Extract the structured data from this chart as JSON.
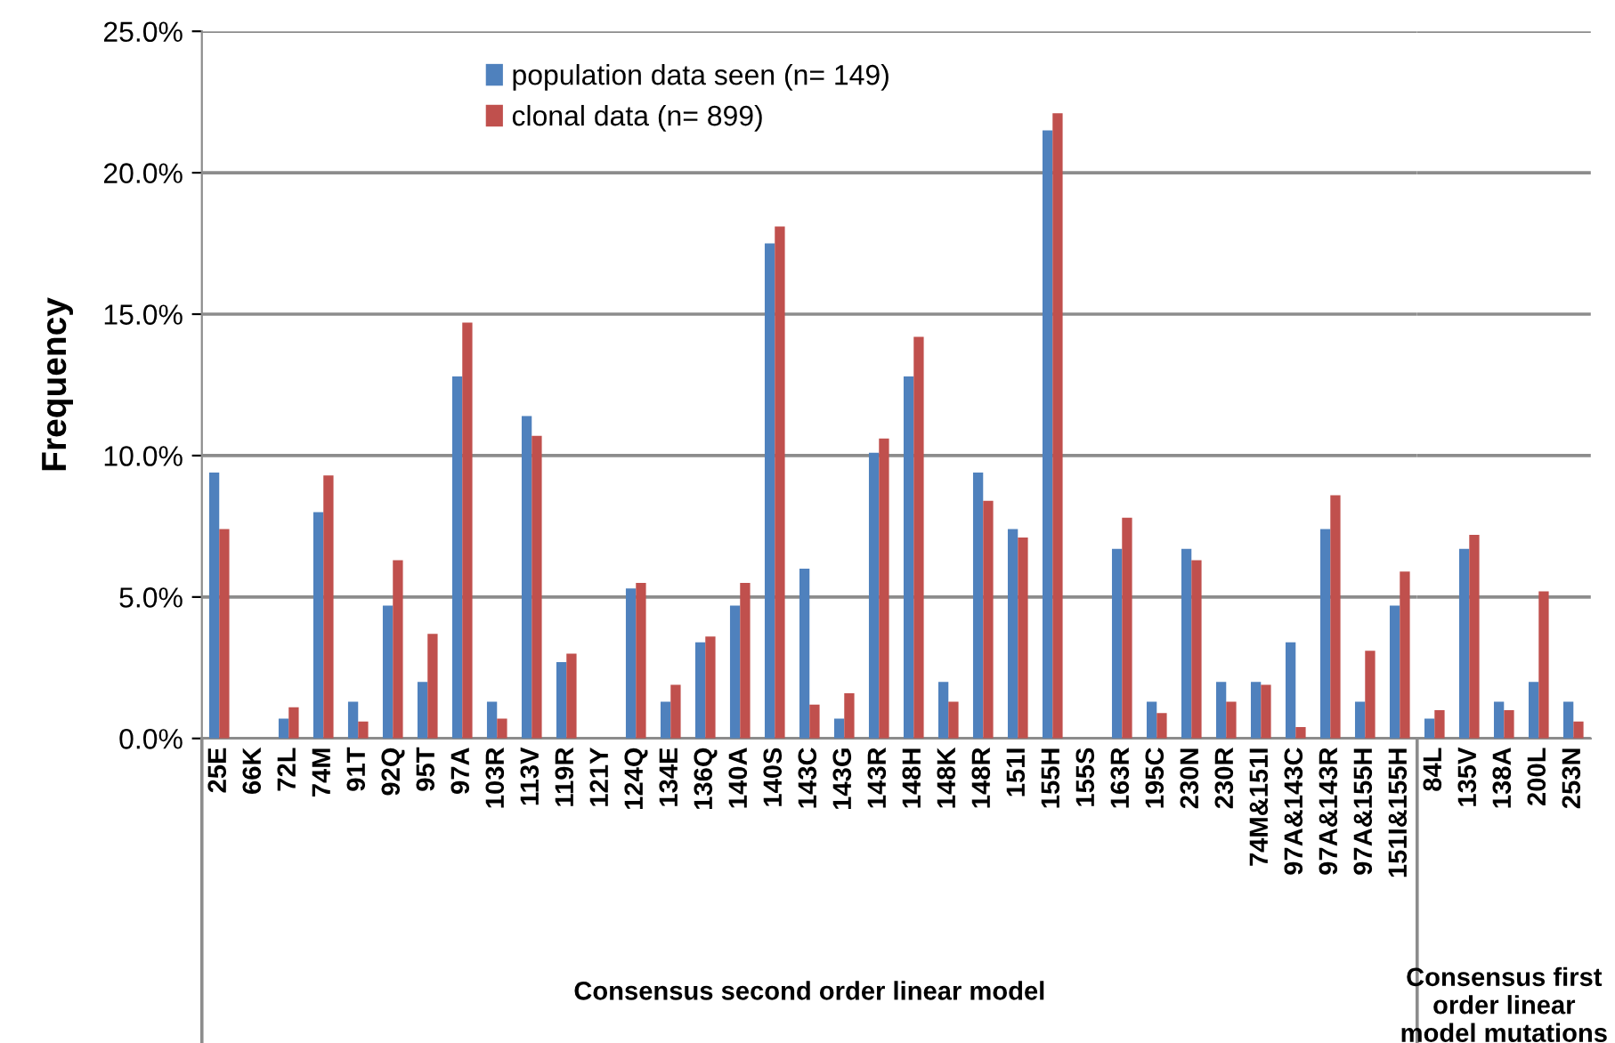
{
  "chart_data": [
    {
      "type": "bar",
      "ylabel": "Frequency",
      "xlabel": "Consensus second order linear model",
      "categories": [
        "25E",
        "66K",
        "72L",
        "74M",
        "91T",
        "92Q",
        "95T",
        "97A",
        "103R",
        "113V",
        "119R",
        "121Y",
        "124Q",
        "134E",
        "136Q",
        "140A",
        "140S",
        "143C",
        "143G",
        "143R",
        "148H",
        "148K",
        "148R",
        "151I",
        "155H",
        "155S",
        "163R",
        "195C",
        "230N",
        "230R",
        "74M&151I",
        "97A&143C",
        "97A&143R",
        "97A&155H",
        "151I&155H"
      ],
      "series": [
        {
          "name": "population data seen (n= 149)",
          "color": "#4f81bd",
          "values": [
            9.4,
            0,
            0.7,
            8.0,
            1.3,
            4.7,
            2.0,
            12.8,
            1.3,
            11.4,
            2.7,
            0,
            5.3,
            1.3,
            3.4,
            4.7,
            17.5,
            6.0,
            0.7,
            10.1,
            12.8,
            2.0,
            9.4,
            7.4,
            21.5,
            0,
            6.7,
            1.3,
            6.7,
            2.0,
            2.0,
            3.4,
            7.4,
            1.3,
            4.7
          ]
        },
        {
          "name": "clonal data (n= 899)",
          "color": "#c0504d",
          "values": [
            7.4,
            0,
            1.1,
            9.3,
            0.6,
            6.3,
            3.7,
            14.7,
            0.7,
            10.7,
            3.0,
            0,
            5.5,
            1.9,
            3.6,
            5.5,
            18.1,
            1.2,
            1.6,
            10.6,
            14.2,
            1.3,
            8.4,
            7.1,
            22.1,
            0,
            7.8,
            0.9,
            6.3,
            1.3,
            1.9,
            0.4,
            8.6,
            3.1,
            5.9
          ]
        }
      ],
      "ylim": [
        0,
        25
      ],
      "yticks": [
        {
          "value": 0,
          "label": "0.0%"
        },
        {
          "value": 5,
          "label": "5.0%"
        },
        {
          "value": 10,
          "label": "10.0%"
        },
        {
          "value": 15,
          "label": "15.0%"
        },
        {
          "value": 20,
          "label": "20.0%"
        },
        {
          "value": 25,
          "label": "25.0%"
        }
      ],
      "grid": "y",
      "legend": "top"
    },
    {
      "type": "bar",
      "xlabel": "Consensus first order linear model mutations",
      "categories": [
        "84L",
        "135V",
        "138A",
        "200L",
        "253N"
      ],
      "series": [
        {
          "color": "#4f81bd",
          "values": [
            0.7,
            6.7,
            1.3,
            2.0,
            1.3
          ]
        },
        {
          "color": "#c0504d",
          "values": [
            1.0,
            7.2,
            1.0,
            5.2,
            0.6
          ]
        }
      ],
      "ylim": [
        0,
        25
      ],
      "grid": "y",
      "tick_labels": "x"
    }
  ]
}
